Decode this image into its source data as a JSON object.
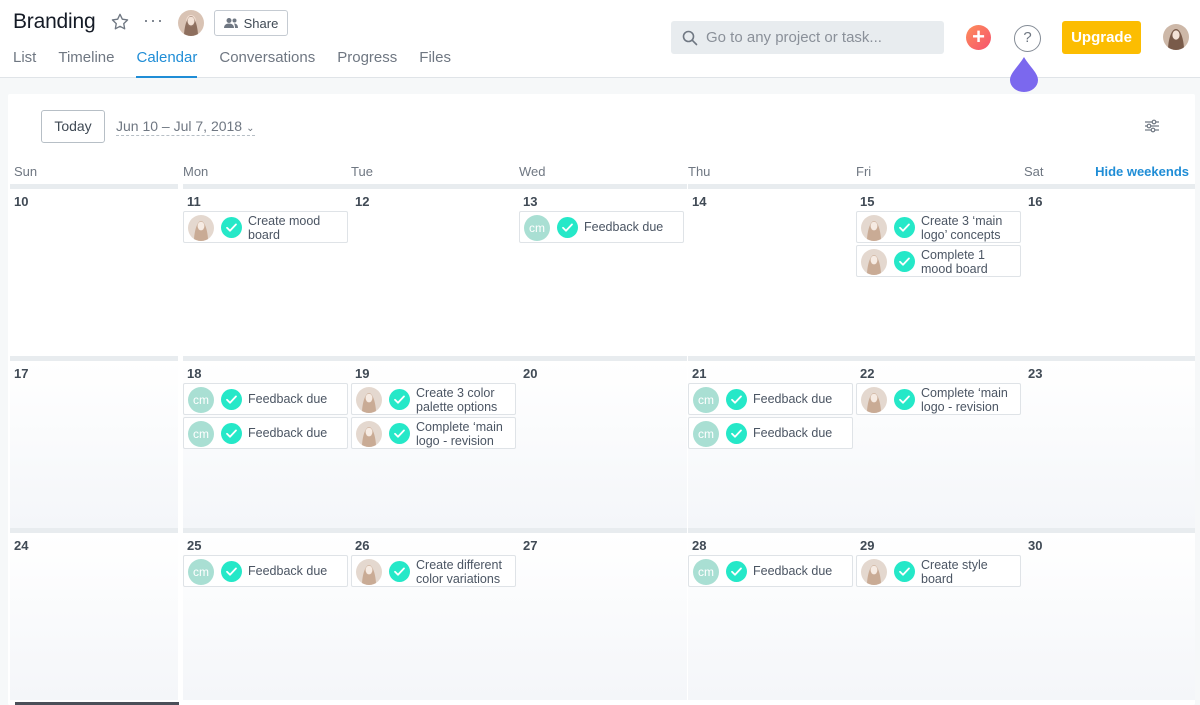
{
  "header": {
    "title": "Branding",
    "share_label": "Share",
    "tabs": [
      {
        "label": "List"
      },
      {
        "label": "Timeline"
      },
      {
        "label": "Calendar",
        "active": true
      },
      {
        "label": "Conversations"
      },
      {
        "label": "Progress"
      },
      {
        "label": "Files"
      }
    ],
    "search_placeholder": "Go to any project or task...",
    "help_label": "?",
    "upgrade_label": "Upgrade",
    "accent": "#1f8dd6",
    "upgrade_color": "#fcbd01"
  },
  "calendar": {
    "today_label": "Today",
    "range_label": "Jun 10 – Jul 7, 2018",
    "hide_weekends_label": "Hide weekends",
    "days_of_week": [
      "Sun",
      "Mon",
      "Tue",
      "Wed",
      "Thu",
      "Fri",
      "Sat"
    ],
    "weeks": [
      {
        "days": [
          {
            "num": "10",
            "tasks": []
          },
          {
            "num": "11",
            "tasks": [
              {
                "assignee": "photo",
                "text": "Create mood board"
              }
            ]
          },
          {
            "num": "12",
            "tasks": []
          },
          {
            "num": "13",
            "tasks": [
              {
                "assignee": "cm",
                "text": "Feedback due"
              }
            ]
          },
          {
            "num": "14",
            "tasks": []
          },
          {
            "num": "15",
            "tasks": [
              {
                "assignee": "photo",
                "text": "Create 3 ‘main logo’ concepts"
              },
              {
                "assignee": "photo",
                "text": "Complete 1 mood board"
              }
            ]
          },
          {
            "num": "16",
            "tasks": []
          }
        ]
      },
      {
        "days": [
          {
            "num": "17",
            "tasks": []
          },
          {
            "num": "18",
            "tasks": [
              {
                "assignee": "cm",
                "text": "Feedback due"
              },
              {
                "assignee": "cm",
                "text": "Feedback due"
              }
            ]
          },
          {
            "num": "19",
            "tasks": [
              {
                "assignee": "photo",
                "text": "Create 3 color palette options"
              },
              {
                "assignee": "photo",
                "text": "Complete ‘main logo - revision"
              }
            ]
          },
          {
            "num": "20",
            "tasks": []
          },
          {
            "num": "21",
            "tasks": [
              {
                "assignee": "cm",
                "text": "Feedback due"
              },
              {
                "assignee": "cm",
                "text": "Feedback due"
              }
            ]
          },
          {
            "num": "22",
            "tasks": [
              {
                "assignee": "photo",
                "text": "Complete ‘main logo - revision"
              }
            ]
          },
          {
            "num": "23",
            "tasks": []
          }
        ]
      },
      {
        "days": [
          {
            "num": "24",
            "tasks": []
          },
          {
            "num": "25",
            "tasks": [
              {
                "assignee": "cm",
                "text": "Feedback due"
              }
            ]
          },
          {
            "num": "26",
            "tasks": [
              {
                "assignee": "photo",
                "text": "Create different color variations"
              }
            ]
          },
          {
            "num": "27",
            "tasks": []
          },
          {
            "num": "28",
            "tasks": [
              {
                "assignee": "cm",
                "text": "Feedback due"
              }
            ]
          },
          {
            "num": "29",
            "tasks": [
              {
                "assignee": "photo",
                "text": "Create style board"
              }
            ]
          },
          {
            "num": "30",
            "tasks": []
          }
        ]
      }
    ],
    "assignee_initials": "cm",
    "check_color": "#25e8c8"
  }
}
